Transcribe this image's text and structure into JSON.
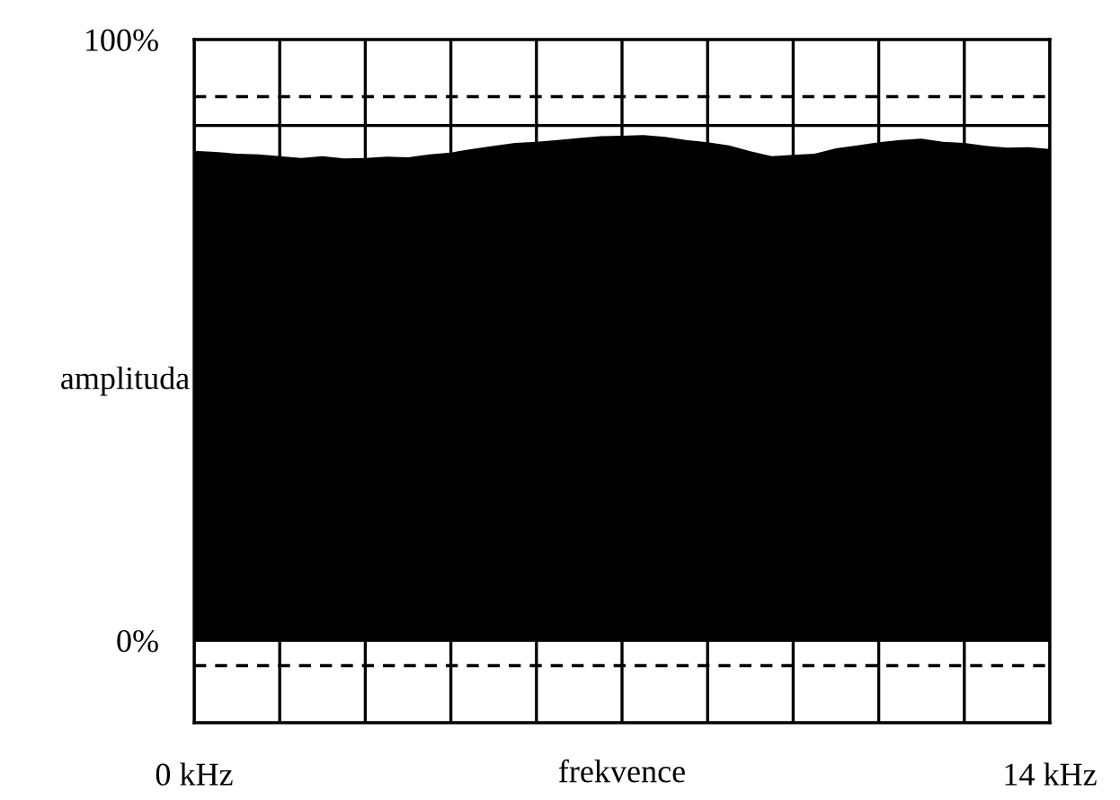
{
  "chart_data": {
    "type": "area",
    "xlabel": "frekvence",
    "ylabel": "amplituda",
    "x": [
      0,
      0.35,
      0.7,
      1.05,
      1.4,
      1.75,
      2.1,
      2.45,
      2.8,
      3.15,
      3.5,
      3.85,
      4.2,
      4.55,
      4.9,
      5.25,
      5.6,
      5.95,
      6.3,
      6.65,
      7.0,
      7.35,
      7.7,
      8.05,
      8.4,
      8.75,
      9.1,
      9.45,
      9.8,
      10.15,
      10.5,
      10.85,
      11.2,
      11.55,
      11.9,
      12.25,
      12.6,
      12.95,
      13.3,
      13.65,
      14
    ],
    "series": [
      {
        "color": "#000000",
        "values": [
          81.5,
          81.3,
          81.0,
          80.9,
          80.6,
          80.3,
          80.6,
          80.2,
          80.3,
          80.5,
          80.4,
          80.9,
          81.2,
          81.8,
          82.3,
          82.8,
          83.0,
          83.3,
          83.6,
          83.9,
          84.0,
          84.1,
          83.8,
          83.3,
          82.9,
          82.4,
          81.4,
          80.6,
          80.8,
          81.0,
          81.9,
          82.4,
          82.9,
          83.3,
          83.5,
          83.0,
          82.8,
          82.3,
          82.0,
          82.1,
          81.8
        ]
      }
    ],
    "xlim": [
      0,
      14
    ],
    "xticks": [
      {
        "value": 0,
        "label": "0 kHz"
      },
      {
        "value": 1.4,
        "label": null
      },
      {
        "value": 2.8,
        "label": null
      },
      {
        "value": 4.2,
        "label": null
      },
      {
        "value": 5.6,
        "label": null
      },
      {
        "value": 7.0,
        "label": null
      },
      {
        "value": 8.4,
        "label": null
      },
      {
        "value": 9.8,
        "label": null
      },
      {
        "value": 11.2,
        "label": null
      },
      {
        "value": 12.6,
        "label": null
      },
      {
        "value": 14,
        "label": "14 kHz"
      }
    ],
    "ylim": [
      -13.7,
      100
    ],
    "yticks": [
      {
        "value": 0,
        "label": "0%"
      },
      {
        "value": 100,
        "label": "100%"
      }
    ],
    "grid": "x",
    "ref_lines": [
      {
        "axis": "y",
        "value": 85.7,
        "color": "#000000",
        "line_style": "solid"
      },
      {
        "axis": "y",
        "value": 90.5,
        "color": "#000000",
        "line_style": "dashed"
      },
      {
        "axis": "y",
        "value": 0,
        "color": "#000000",
        "line_style": "solid"
      },
      {
        "axis": "y",
        "value": -4.2,
        "color": "#000000",
        "line_style": "dashed"
      }
    ],
    "legend": false
  }
}
